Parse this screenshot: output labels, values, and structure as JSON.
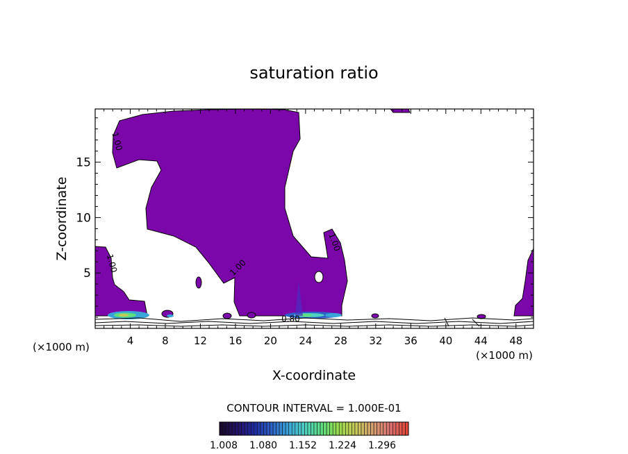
{
  "chart_data": {
    "type": "contour",
    "title": "saturation ratio",
    "xlabel": "X-coordinate",
    "ylabel": "Z-coordinate",
    "x_unit_left": "(×1000 m)",
    "x_unit_right": "(×1000 m)",
    "xlim": [
      0,
      50
    ],
    "ylim": [
      0,
      19.8
    ],
    "x_ticks": [
      4,
      8,
      12,
      16,
      20,
      24,
      28,
      32,
      36,
      40,
      44,
      48
    ],
    "y_ticks": [
      5,
      10,
      15
    ],
    "contour_interval_text": "CONTOUR INTERVAL = 1.000E-01",
    "contour_labels": [
      {
        "text": "1.00",
        "x": 2.2,
        "z": 16.8
      },
      {
        "text": "1.00",
        "x": 1.6,
        "z": 5.8
      },
      {
        "text": "1.00",
        "x": 16.5,
        "z": 5.3
      },
      {
        "text": "1.00",
        "x": 27.0,
        "z": 7.7
      },
      {
        "text": "0.80",
        "x": 22.3,
        "z": 0.6
      }
    ],
    "colorbar": {
      "tick_labels": [
        "1.008",
        "1.080",
        "1.152",
        "1.224",
        "1.296"
      ],
      "colors": [
        "#1a0a2e",
        "#25126a",
        "#1e2aa0",
        "#2e62c8",
        "#3aa6d8",
        "#4fd0c0",
        "#5ee07e",
        "#9ad84a",
        "#c8c85a",
        "#d6a070",
        "#d87070",
        "#e04838"
      ]
    },
    "fill_color": "#7b06aa"
  }
}
